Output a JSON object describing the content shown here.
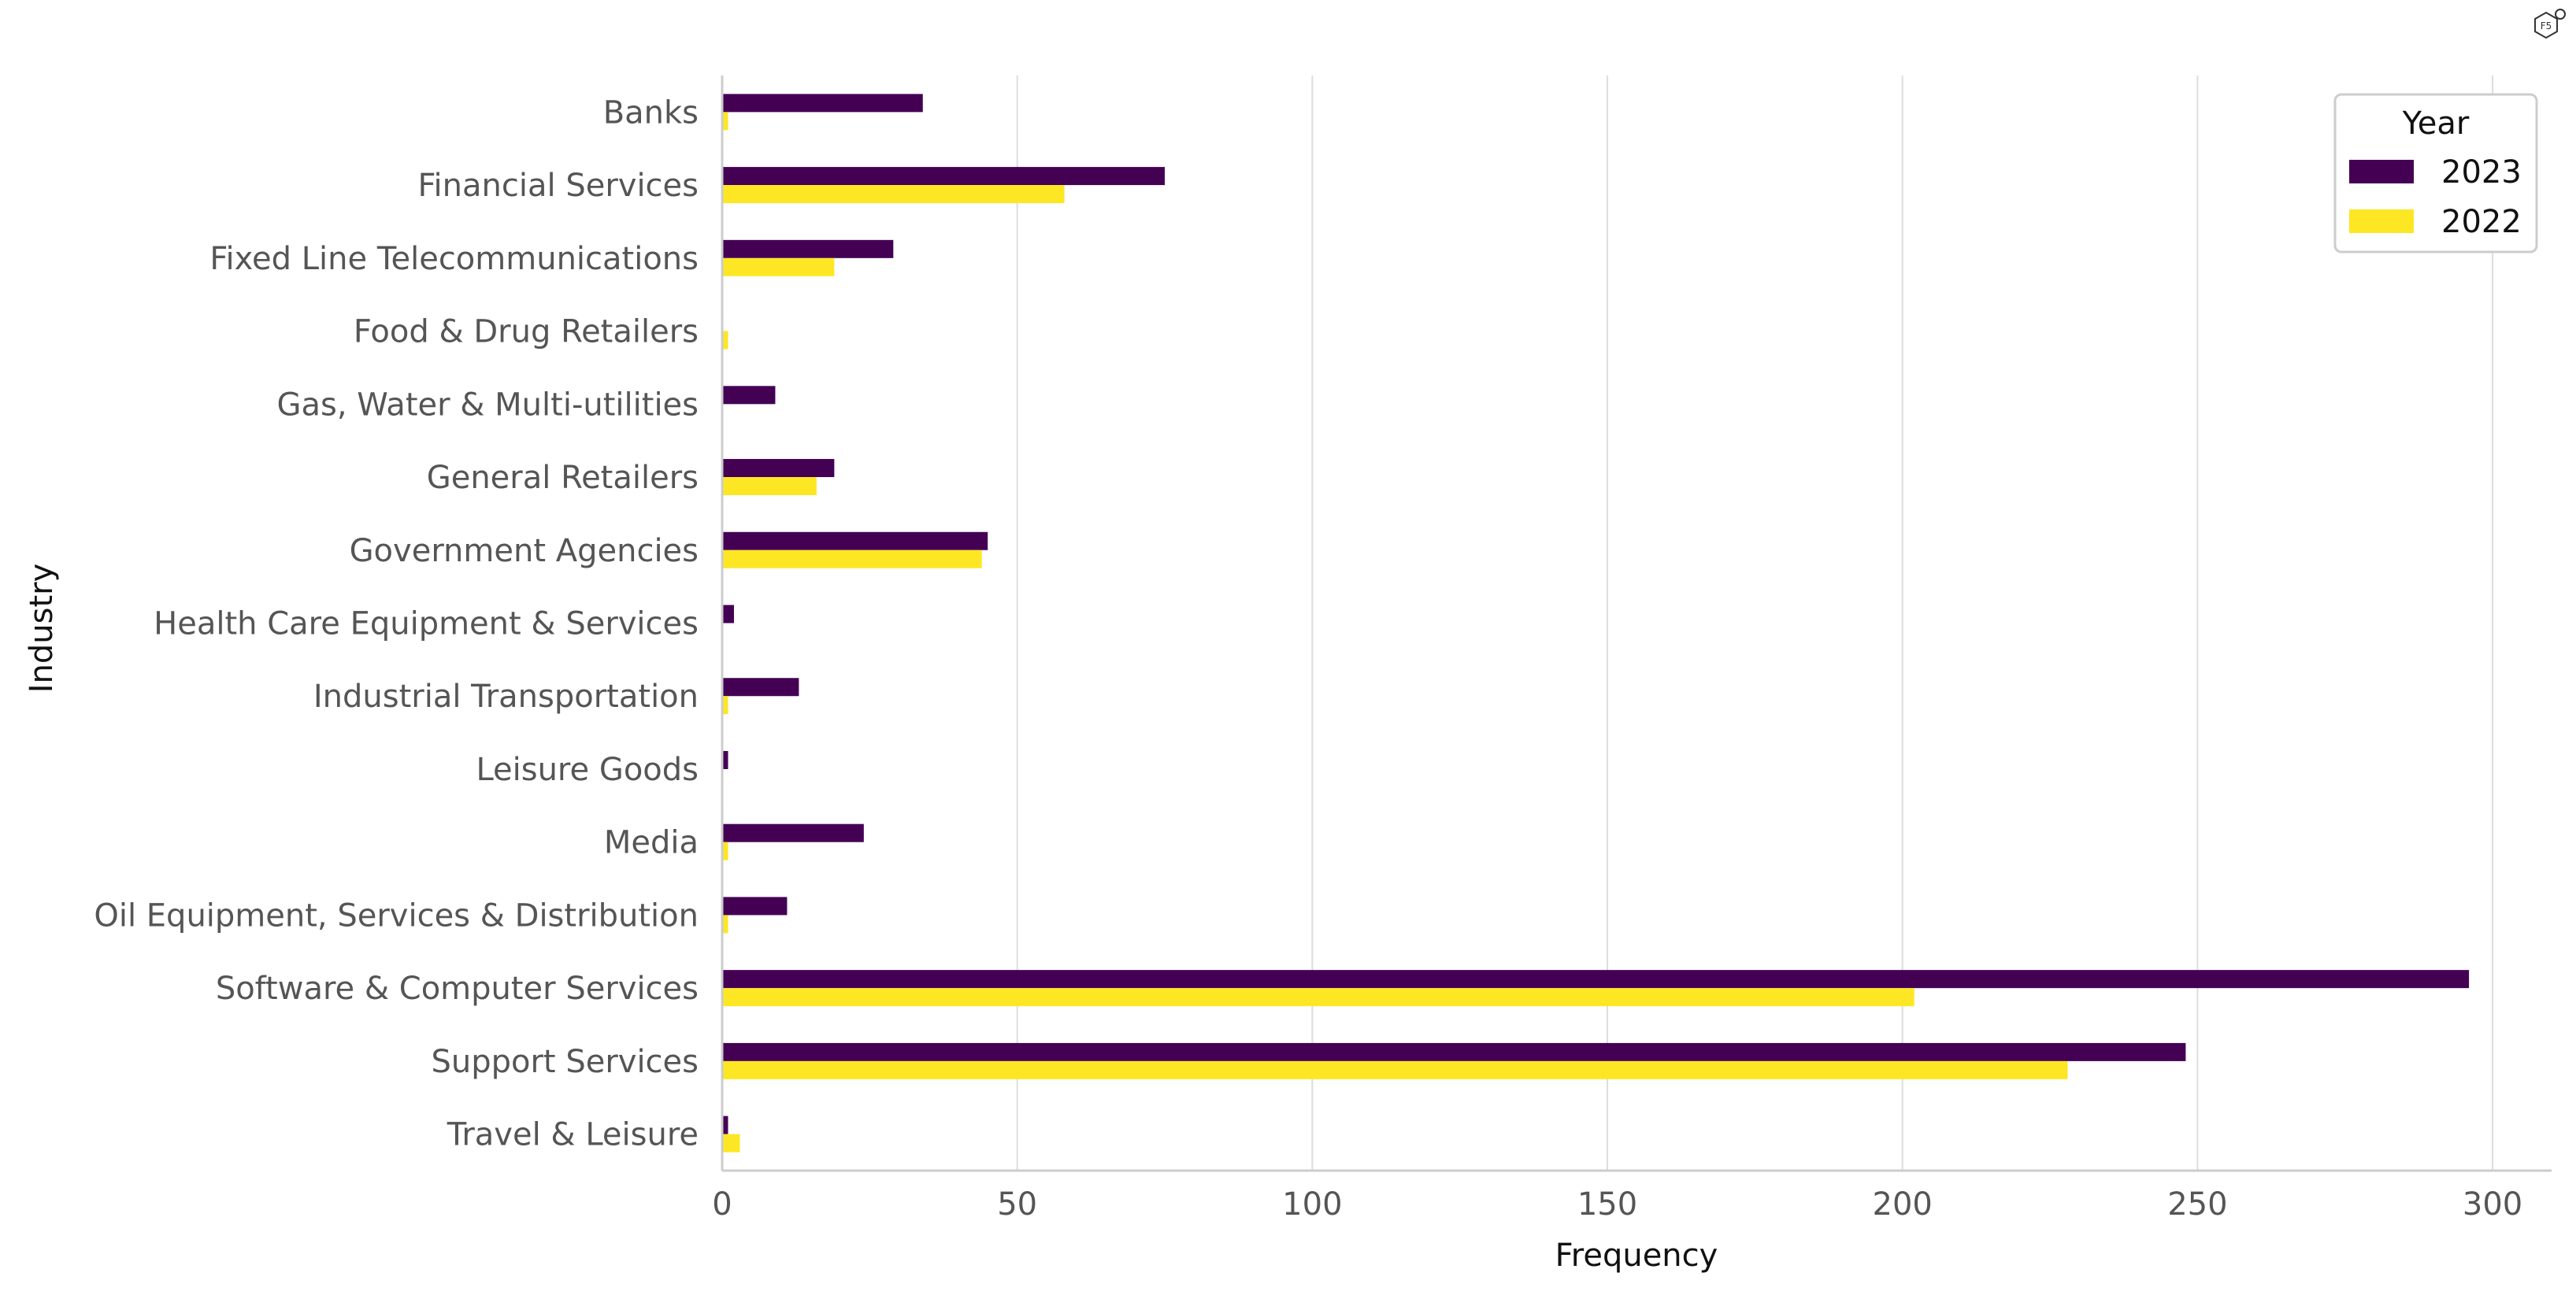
{
  "chart_data": {
    "type": "bar",
    "orientation": "horizontal",
    "categories": [
      "Banks",
      "Financial Services",
      "Fixed Line Telecommunications",
      "Food & Drug Retailers",
      "Gas, Water & Multi-utilities",
      "General Retailers",
      "Government Agencies",
      "Health Care Equipment & Services",
      "Industrial Transportation",
      "Leisure Goods",
      "Media",
      "Oil Equipment, Services & Distribution",
      "Software & Computer Services",
      "Support Services",
      "Travel & Leisure"
    ],
    "series": [
      {
        "name": "2023",
        "color": "#440154",
        "values": [
          34,
          75,
          29,
          0,
          9,
          19,
          45,
          2,
          13,
          1,
          24,
          11,
          296,
          248,
          1
        ]
      },
      {
        "name": "2022",
        "color": "#fde725",
        "values": [
          1,
          58,
          19,
          1,
          0,
          16,
          44,
          0,
          1,
          0,
          1,
          1,
          202,
          228,
          3
        ]
      }
    ],
    "xlabel": "Frequency",
    "ylabel": "Industry",
    "xlim": [
      0,
      310
    ],
    "xticks": [
      0,
      50,
      100,
      150,
      200,
      250,
      300
    ],
    "grid": "vertical",
    "legend": {
      "title": "Year",
      "placement": "top-right"
    }
  },
  "badge": {
    "label": "F5"
  }
}
